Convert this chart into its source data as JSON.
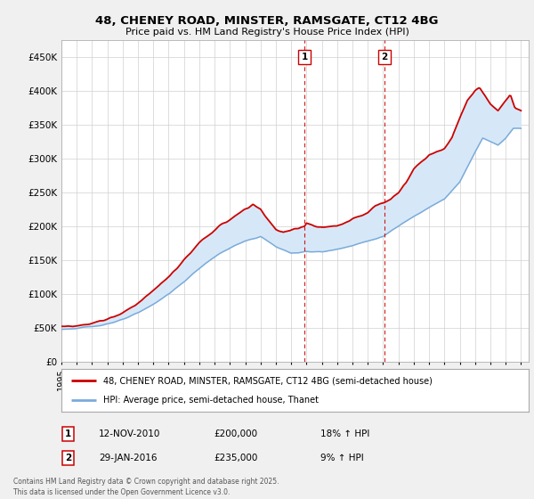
{
  "title1": "48, CHENEY ROAD, MINSTER, RAMSGATE, CT12 4BG",
  "title2": "Price paid vs. HM Land Registry's House Price Index (HPI)",
  "xlim_start": 1995.0,
  "xlim_end": 2025.5,
  "ylim_min": 0,
  "ylim_max": 475000,
  "yticks": [
    0,
    50000,
    100000,
    150000,
    200000,
    250000,
    300000,
    350000,
    400000,
    450000
  ],
  "ytick_labels": [
    "£0",
    "£50K",
    "£100K",
    "£150K",
    "£200K",
    "£250K",
    "£300K",
    "£350K",
    "£400K",
    "£450K"
  ],
  "xticks": [
    1995,
    1996,
    1997,
    1998,
    1999,
    2000,
    2001,
    2002,
    2003,
    2004,
    2005,
    2006,
    2007,
    2008,
    2009,
    2010,
    2011,
    2012,
    2013,
    2014,
    2015,
    2016,
    2017,
    2018,
    2019,
    2020,
    2021,
    2022,
    2023,
    2024,
    2025
  ],
  "sale1_x": 2010.87,
  "sale2_x": 2016.08,
  "legend_line1": "48, CHENEY ROAD, MINSTER, RAMSGATE, CT12 4BG (semi-detached house)",
  "legend_line2": "HPI: Average price, semi-detached house, Thanet",
  "annotation1_date": "12-NOV-2010",
  "annotation1_price": "£200,000",
  "annotation1_hpi": "18% ↑ HPI",
  "annotation2_date": "29-JAN-2016",
  "annotation2_price": "£235,000",
  "annotation2_hpi": "9% ↑ HPI",
  "footer": "Contains HM Land Registry data © Crown copyright and database right 2025.\nThis data is licensed under the Open Government Licence v3.0.",
  "line_color_red": "#cc0000",
  "line_color_blue": "#7aabdb",
  "fill_color_blue": "#d6e8f7",
  "background_color": "#f0f0f0",
  "plot_bg_color": "#ffffff",
  "hpi_nodes_x": [
    1995,
    1996,
    1997,
    1998,
    1999,
    2000,
    2001,
    2002,
    2003,
    2004,
    2005,
    2006,
    2007,
    2008,
    2009,
    2010,
    2011,
    2012,
    2013,
    2014,
    2015,
    2016,
    2017,
    2018,
    2019,
    2020,
    2021,
    2022,
    2022.5,
    2023,
    2023.5,
    2024,
    2024.5,
    2025
  ],
  "hpi_nodes_y": [
    48000,
    49000,
    52000,
    56000,
    62000,
    72000,
    85000,
    100000,
    118000,
    138000,
    155000,
    168000,
    178000,
    185000,
    170000,
    160000,
    163000,
    162000,
    166000,
    172000,
    178000,
    185000,
    200000,
    215000,
    228000,
    240000,
    265000,
    310000,
    330000,
    325000,
    320000,
    330000,
    345000,
    345000
  ],
  "red_nodes_x": [
    1995,
    1996,
    1997,
    1998,
    1999,
    2000,
    2001,
    2002,
    2003,
    2004,
    2005,
    2006,
    2007,
    2007.5,
    2008,
    2008.5,
    2009,
    2009.5,
    2010,
    2010.87,
    2011,
    2011.5,
    2012,
    2013,
    2014,
    2014.5,
    2015,
    2015.5,
    2016.08,
    2016.5,
    2017,
    2017.5,
    2018,
    2018.5,
    2019,
    2019.5,
    2020,
    2020.5,
    2021,
    2021.5,
    2022,
    2022.3,
    2022.6,
    2023,
    2023.5,
    2024,
    2024.3,
    2024.6,
    2025
  ],
  "red_nodes_y": [
    52000,
    53000,
    57000,
    63000,
    72000,
    87000,
    105000,
    125000,
    150000,
    175000,
    195000,
    210000,
    225000,
    232000,
    225000,
    210000,
    195000,
    190000,
    195000,
    200000,
    205000,
    200000,
    198000,
    200000,
    210000,
    215000,
    220000,
    230000,
    235000,
    240000,
    250000,
    265000,
    285000,
    295000,
    305000,
    310000,
    315000,
    330000,
    360000,
    385000,
    400000,
    405000,
    395000,
    380000,
    370000,
    385000,
    395000,
    375000,
    370000
  ]
}
